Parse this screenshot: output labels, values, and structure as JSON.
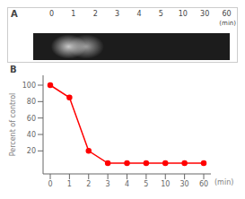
{
  "chart_data": {
    "type": "line",
    "x_label": "(min)",
    "y_label": "Percent of control",
    "annotations": [
      "A",
      "B"
    ],
    "categories": [
      "0",
      "1",
      "2",
      "3",
      "4",
      "5",
      "10",
      "30",
      "60"
    ],
    "values": [
      100,
      85,
      20,
      5,
      5,
      5,
      5,
      5,
      5
    ],
    "color": "#ff0000",
    "marker": "o",
    "ylim": [
      -8,
      112
    ],
    "yticks": [
      20,
      40,
      60,
      80,
      100
    ],
    "grid": false
  }
}
